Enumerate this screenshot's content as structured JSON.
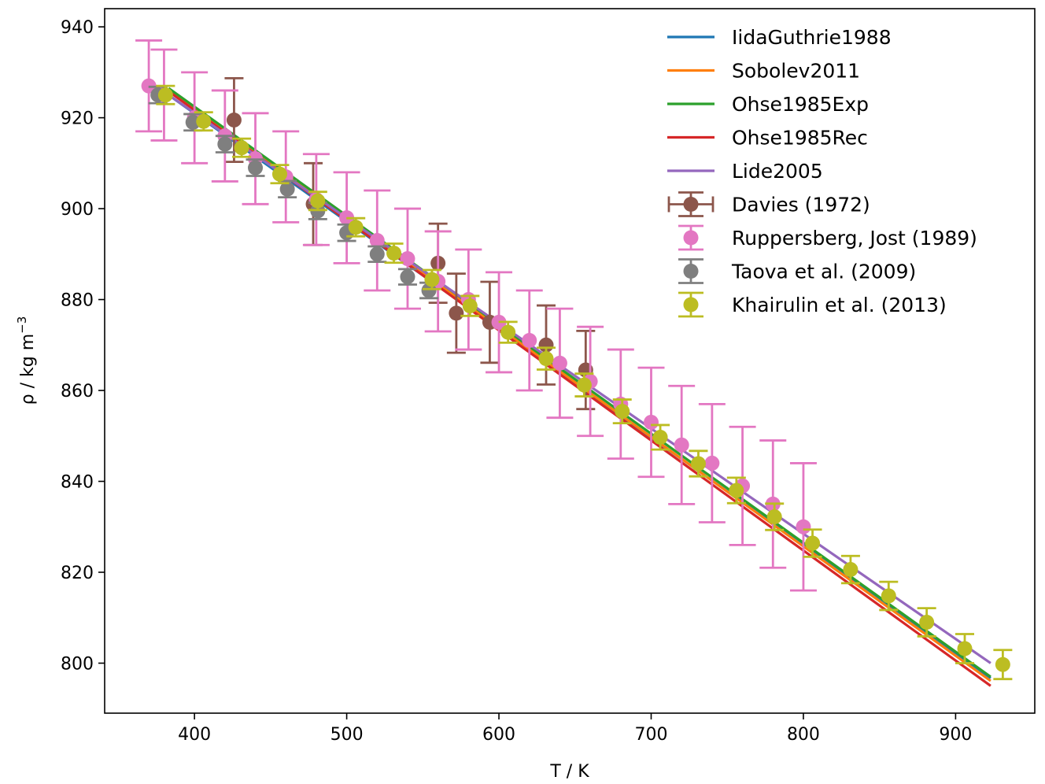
{
  "chart_data": {
    "type": "scatter",
    "title": "",
    "xlabel": "T / K",
    "ylabel": "ρ / kg m",
    "ylabel_superscript": "−3",
    "xlim": [
      341,
      952
    ],
    "ylim": [
      789,
      944
    ],
    "xticks": [
      400,
      500,
      600,
      700,
      800,
      900
    ],
    "yticks": [
      800,
      820,
      840,
      860,
      880,
      900,
      920,
      940
    ],
    "legend_position": "top-right",
    "lines": [
      {
        "name": "IidaGuthrie1988",
        "color": "#1f77b4",
        "x": [
          383,
          923
        ],
        "y": [
          925.0,
          796.7
        ]
      },
      {
        "name": "Sobolev2011",
        "color": "#ff7f0e",
        "x": [
          380,
          923
        ],
        "y": [
          926.8,
          796.1
        ]
      },
      {
        "name": "Ohse1985Exp",
        "color": "#2ca02c",
        "x": [
          383,
          923
        ],
        "y": [
          926.5,
          797.0
        ]
      },
      {
        "name": "Ohse1985Rec",
        "color": "#d62728",
        "x": [
          383,
          923
        ],
        "y": [
          925.8,
          795.0
        ]
      },
      {
        "name": "Lide2005",
        "color": "#9467bd",
        "x": [
          383,
          923
        ],
        "y": [
          925.0,
          800.0
        ]
      }
    ],
    "series": [
      {
        "name": "Davies (1972)",
        "color": "#8c564b",
        "capwidth": 12,
        "x": [
          426,
          478,
          560,
          572,
          594,
          631,
          657
        ],
        "y": [
          919.5,
          901.0,
          888.0,
          877.0,
          875.0,
          870.0,
          864.5
        ],
        "yerr": [
          9.2,
          9.0,
          8.7,
          8.7,
          8.9,
          8.7,
          8.6
        ],
        "xerr": [
          0,
          0,
          0,
          0,
          0,
          0,
          0
        ]
      },
      {
        "name": "Ruppersberg, Jost (1989)",
        "color": "#e377c2",
        "capwidth": 17,
        "x": [
          370,
          380,
          400,
          420,
          440,
          460,
          480,
          500,
          520,
          540,
          560,
          580,
          600,
          620,
          640,
          660,
          680,
          700,
          720,
          740,
          760,
          780,
          800
        ],
        "y": [
          927,
          925,
          920,
          916,
          911,
          907,
          902,
          898,
          893,
          889,
          884,
          880,
          875,
          871,
          866,
          862,
          857,
          853,
          848,
          844,
          839,
          835,
          830
        ],
        "yerr": [
          10,
          10,
          10,
          10,
          10,
          10,
          10,
          10,
          11,
          11,
          11,
          11,
          11,
          11,
          12,
          12,
          12,
          12,
          13,
          13,
          13,
          14,
          14
        ],
        "xerr": [
          0,
          0,
          0,
          0,
          0,
          0,
          0,
          0,
          0,
          0,
          0,
          0,
          0,
          0,
          0,
          0,
          0,
          0,
          0,
          0,
          0,
          0,
          0
        ]
      },
      {
        "name": "Taova et al. (2009)",
        "color": "#7f7f7f",
        "capwidth": 12,
        "x": [
          376,
          399,
          420,
          440,
          461,
          481,
          500,
          520,
          540,
          554
        ],
        "y": [
          925.0,
          919.0,
          914.2,
          909.0,
          904.3,
          899.5,
          894.7,
          890.0,
          885.0,
          882.0
        ],
        "yerr": [
          1.8,
          1.8,
          1.8,
          1.8,
          1.8,
          1.8,
          1.8,
          1.7,
          1.7,
          1.7
        ],
        "xerr": [
          0,
          0,
          0,
          0,
          0,
          0,
          0,
          0,
          0,
          0
        ]
      },
      {
        "name": "Khairulin et al. (2013)",
        "color": "#bcbd22",
        "capwidth": 12,
        "x": [
          381,
          406,
          431,
          456,
          481,
          506,
          531,
          556,
          581,
          606,
          631,
          656,
          681,
          706,
          731,
          756,
          781,
          806,
          831,
          856,
          881,
          906,
          931
        ],
        "y": [
          925.0,
          919.2,
          913.4,
          907.6,
          901.7,
          895.9,
          890.2,
          884.4,
          878.6,
          872.8,
          867.0,
          861.2,
          855.4,
          849.7,
          843.9,
          838.0,
          832.2,
          826.4,
          820.6,
          814.8,
          809.0,
          803.2,
          799.7
        ],
        "yerr": [
          2.0,
          2.0,
          2.0,
          2.0,
          2.0,
          2.0,
          2.1,
          2.1,
          2.2,
          2.3,
          2.4,
          2.5,
          2.6,
          2.7,
          2.8,
          2.8,
          2.9,
          3.0,
          3.0,
          3.1,
          3.1,
          3.2,
          3.2
        ],
        "xerr": [
          0,
          0,
          0,
          0,
          0,
          0,
          0,
          0,
          0,
          0,
          0,
          0,
          0,
          0,
          0,
          0,
          0,
          0,
          0,
          0,
          0,
          0,
          0
        ]
      }
    ]
  }
}
